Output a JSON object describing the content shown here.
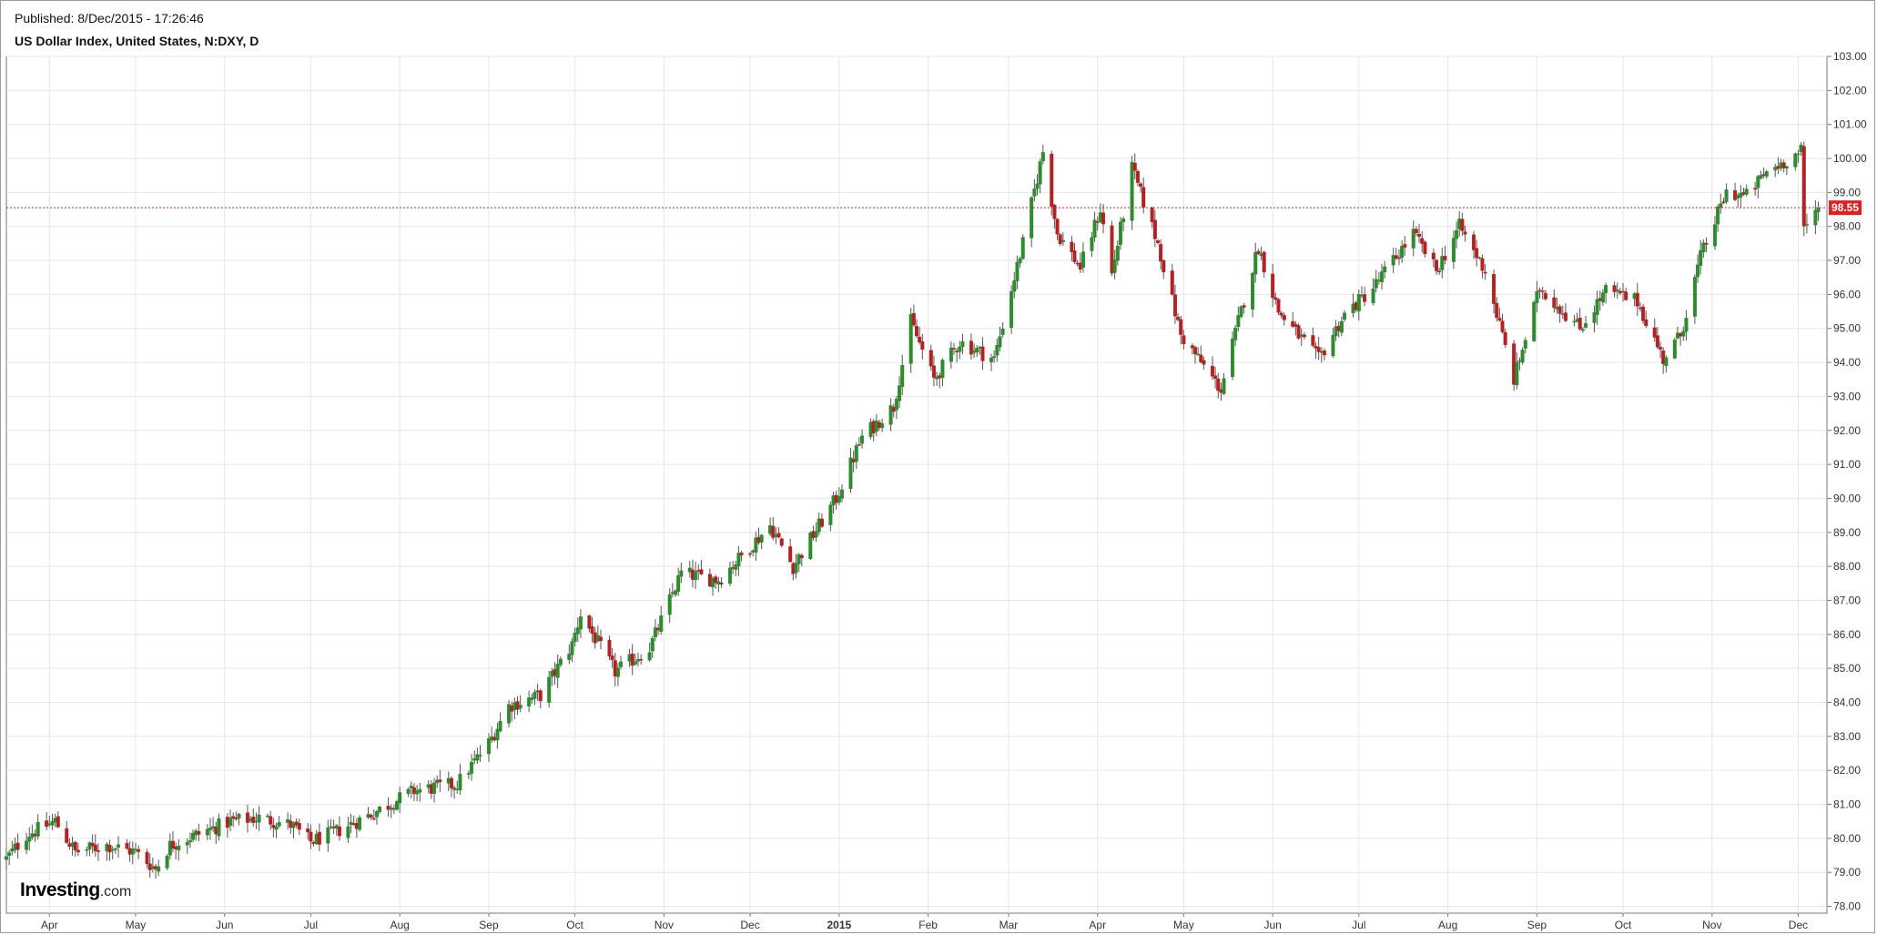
{
  "header": {
    "published": "Published: 8/Dec/2015 - 17:26:46",
    "title": "US Dollar Index, United States, N:DXY, D"
  },
  "brand": {
    "name": "Investing",
    "suffix": ".com"
  },
  "colors": {
    "up": "#2e8b2e",
    "down": "#b22222",
    "grid": "#e6e6e6",
    "current_price": "#e02020",
    "frame": "#999999"
  },
  "chart_data": {
    "type": "candlestick",
    "title": "US Dollar Index, United States, N:DXY, D",
    "ylim": [
      77.8,
      103.0
    ],
    "y_ticks": [
      "78.00",
      "79.00",
      "80.00",
      "81.00",
      "82.00",
      "83.00",
      "84.00",
      "85.00",
      "86.00",
      "87.00",
      "88.00",
      "89.00",
      "90.00",
      "91.00",
      "92.00",
      "93.00",
      "94.00",
      "95.00",
      "96.00",
      "97.00",
      "98.00",
      "99.00",
      "100.00",
      "101.00",
      "102.00",
      "103.00"
    ],
    "x_ticks": [
      {
        "label": "Apr",
        "date": "2014-04-01"
      },
      {
        "label": "May",
        "date": "2014-05-01"
      },
      {
        "label": "Jun",
        "date": "2014-06-01"
      },
      {
        "label": "Jul",
        "date": "2014-07-01"
      },
      {
        "label": "Aug",
        "date": "2014-08-01"
      },
      {
        "label": "Sep",
        "date": "2014-09-01"
      },
      {
        "label": "Oct",
        "date": "2014-10-01"
      },
      {
        "label": "Nov",
        "date": "2014-11-01"
      },
      {
        "label": "Dec",
        "date": "2014-12-01"
      },
      {
        "label": "2015",
        "date": "2015-01-01",
        "bold": true
      },
      {
        "label": "Feb",
        "date": "2015-02-01"
      },
      {
        "label": "Mar",
        "date": "2015-03-01"
      },
      {
        "label": "Apr",
        "date": "2015-04-01"
      },
      {
        "label": "May",
        "date": "2015-05-01"
      },
      {
        "label": "Jun",
        "date": "2015-06-01"
      },
      {
        "label": "Jul",
        "date": "2015-07-01"
      },
      {
        "label": "Aug",
        "date": "2015-08-01"
      },
      {
        "label": "Sep",
        "date": "2015-09-01"
      },
      {
        "label": "Oct",
        "date": "2015-10-01"
      },
      {
        "label": "Nov",
        "date": "2015-11-01"
      },
      {
        "label": "Dec",
        "date": "2015-12-01"
      }
    ],
    "x_range": [
      "2014-03-17",
      "2015-12-11"
    ],
    "current_price": 98.55,
    "current_price_label": "98.55",
    "close_path": [
      {
        "date": "2014-03-17",
        "close": 79.4
      },
      {
        "date": "2014-03-24",
        "close": 80.1
      },
      {
        "date": "2014-04-03",
        "close": 80.5
      },
      {
        "date": "2014-04-10",
        "close": 79.6
      },
      {
        "date": "2014-04-21",
        "close": 79.8
      },
      {
        "date": "2014-05-01",
        "close": 79.6
      },
      {
        "date": "2014-05-08",
        "close": 79.1
      },
      {
        "date": "2014-05-13",
        "close": 79.8
      },
      {
        "date": "2014-05-22",
        "close": 80.1
      },
      {
        "date": "2014-06-03",
        "close": 80.5
      },
      {
        "date": "2014-06-13",
        "close": 80.6
      },
      {
        "date": "2014-06-24",
        "close": 80.4
      },
      {
        "date": "2014-07-01",
        "close": 79.9
      },
      {
        "date": "2014-07-10",
        "close": 80.2
      },
      {
        "date": "2014-07-24",
        "close": 80.8
      },
      {
        "date": "2014-08-06",
        "close": 81.4
      },
      {
        "date": "2014-08-21",
        "close": 81.6
      },
      {
        "date": "2014-09-01",
        "close": 82.8
      },
      {
        "date": "2014-09-08",
        "close": 83.9
      },
      {
        "date": "2014-09-19",
        "close": 84.2
      },
      {
        "date": "2014-09-30",
        "close": 85.7
      },
      {
        "date": "2014-10-03",
        "close": 86.6
      },
      {
        "date": "2014-10-15",
        "close": 84.9
      },
      {
        "date": "2014-10-27",
        "close": 85.6
      },
      {
        "date": "2014-11-07",
        "close": 87.8
      },
      {
        "date": "2014-11-20",
        "close": 87.6
      },
      {
        "date": "2014-12-08",
        "close": 89.2
      },
      {
        "date": "2014-12-16",
        "close": 88.0
      },
      {
        "date": "2014-12-31",
        "close": 90.0
      },
      {
        "date": "2015-01-09",
        "close": 91.8
      },
      {
        "date": "2015-01-20",
        "close": 92.7
      },
      {
        "date": "2015-01-26",
        "close": 95.2
      },
      {
        "date": "2015-02-03",
        "close": 93.5
      },
      {
        "date": "2015-02-12",
        "close": 94.6
      },
      {
        "date": "2015-02-24",
        "close": 94.1
      },
      {
        "date": "2015-03-06",
        "close": 97.5
      },
      {
        "date": "2015-03-13",
        "close": 100.2
      },
      {
        "date": "2015-03-18",
        "close": 97.8
      },
      {
        "date": "2015-03-26",
        "close": 96.8
      },
      {
        "date": "2015-04-02",
        "close": 98.5
      },
      {
        "date": "2015-04-06",
        "close": 96.6
      },
      {
        "date": "2015-04-13",
        "close": 99.7
      },
      {
        "date": "2015-04-22",
        "close": 97.5
      },
      {
        "date": "2015-04-30",
        "close": 94.8
      },
      {
        "date": "2015-05-14",
        "close": 93.2
      },
      {
        "date": "2015-05-20",
        "close": 95.2
      },
      {
        "date": "2015-05-27",
        "close": 97.4
      },
      {
        "date": "2015-06-03",
        "close": 95.5
      },
      {
        "date": "2015-06-10",
        "close": 94.8
      },
      {
        "date": "2015-06-17",
        "close": 94.1
      },
      {
        "date": "2015-06-26",
        "close": 95.4
      },
      {
        "date": "2015-07-06",
        "close": 96.2
      },
      {
        "date": "2015-07-20",
        "close": 97.8
      },
      {
        "date": "2015-07-28",
        "close": 96.7
      },
      {
        "date": "2015-08-05",
        "close": 98.0
      },
      {
        "date": "2015-08-14",
        "close": 96.7
      },
      {
        "date": "2015-08-24",
        "close": 93.5
      },
      {
        "date": "2015-09-02",
        "close": 96.2
      },
      {
        "date": "2015-09-16",
        "close": 95.0
      },
      {
        "date": "2015-09-25",
        "close": 96.1
      },
      {
        "date": "2015-10-06",
        "close": 95.8
      },
      {
        "date": "2015-10-15",
        "close": 94.1
      },
      {
        "date": "2015-10-21",
        "close": 94.8
      },
      {
        "date": "2015-10-28",
        "close": 97.1
      },
      {
        "date": "2015-11-06",
        "close": 99.0
      },
      {
        "date": "2015-11-13",
        "close": 98.9
      },
      {
        "date": "2015-11-20",
        "close": 99.6
      },
      {
        "date": "2015-12-02",
        "close": 100.2
      },
      {
        "date": "2015-12-03",
        "close": 97.9
      },
      {
        "date": "2015-12-08",
        "close": 98.55
      }
    ]
  }
}
